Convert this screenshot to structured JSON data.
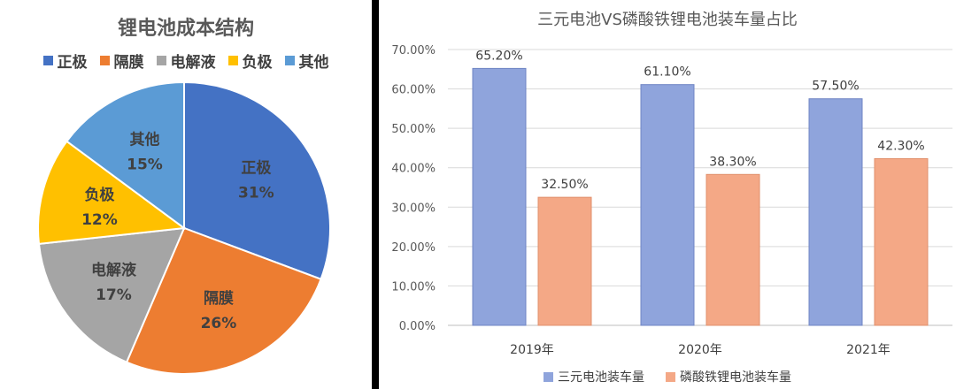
{
  "chart_data": [
    {
      "type": "pie",
      "title": "锂电池成本结构",
      "categories": [
        "正极",
        "隔膜",
        "电解液",
        "负极",
        "其他"
      ],
      "values": [
        31,
        26,
        17,
        12,
        15
      ],
      "value_labels": [
        "31%",
        "26%",
        "17%",
        "12%",
        "15%"
      ],
      "colors": [
        "#4472C4",
        "#ED7D31",
        "#A5A5A5",
        "#FFC000",
        "#5B9BD5"
      ],
      "legend": "top"
    },
    {
      "type": "bar",
      "title": "三元电池VS磷酸铁锂电池装车量占比",
      "categories": [
        "2019年",
        "2020年",
        "2021年"
      ],
      "series": [
        {
          "name": "三元电池装车量",
          "values": [
            65.2,
            61.1,
            57.5
          ],
          "labels": [
            "65.20%",
            "61.10%",
            "57.50%"
          ],
          "color": "#8FA4DC"
        },
        {
          "name": "磷酸铁锂电池装车量",
          "values": [
            32.5,
            38.3,
            42.3
          ],
          "labels": [
            "32.50%",
            "38.30%",
            "42.30%"
          ],
          "color": "#F4A886"
        }
      ],
      "ylim": [
        0,
        70
      ],
      "yticks": [
        "0.00%",
        "10.00%",
        "20.00%",
        "30.00%",
        "40.00%",
        "50.00%",
        "60.00%",
        "70.00%"
      ],
      "grid": true,
      "legend": "bottom"
    }
  ]
}
